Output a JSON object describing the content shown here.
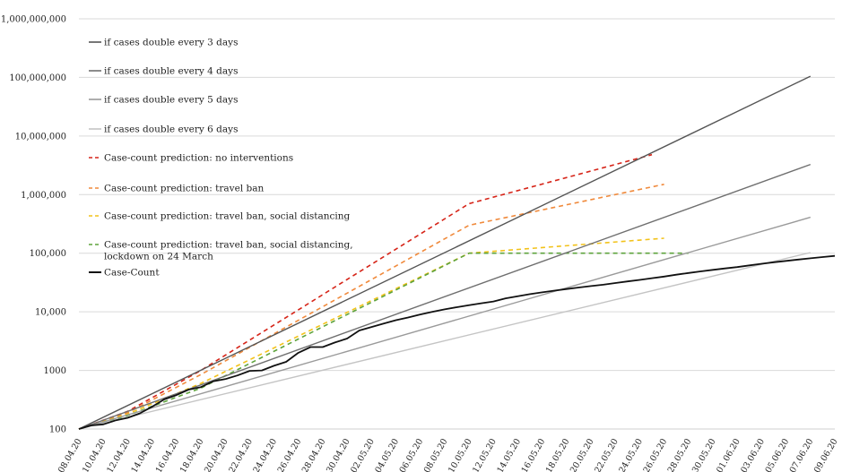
{
  "chart_data": {
    "type": "line",
    "y_scale": "log",
    "ylim": [
      100,
      1000000000
    ],
    "y_ticks": [
      {
        "value": 100,
        "label": "100"
      },
      {
        "value": 1000,
        "label": "1000"
      },
      {
        "value": 10000,
        "label": "10,000"
      },
      {
        "value": 100000,
        "label": "100,000"
      },
      {
        "value": 1000000,
        "label": "1,000,000"
      },
      {
        "value": 10000000,
        "label": "10,000,000"
      },
      {
        "value": 100000000,
        "label": "100,000,000"
      },
      {
        "value": 1000000000,
        "label": "1,000,000,000"
      }
    ],
    "x_ticks": [
      "08.04.20",
      "10.04.20",
      "12.04.20",
      "14.04.20",
      "16.04.20",
      "18.04.20",
      "20.04.20",
      "22.04.20",
      "24.04.20",
      "26.04.20",
      "28.04.20",
      "30.04.20",
      "02.05.20",
      "04.05.20",
      "06.05.20",
      "08.05.20",
      "10.05.20",
      "12.05.20",
      "14.05.20",
      "16.05.20",
      "18.05.20",
      "20.05.20",
      "22.05.20",
      "24.05.20",
      "26.05.20",
      "28.05.20",
      "30.05.20",
      "01.06.20",
      "03.06.20",
      "05.06.20",
      "07.06.20",
      "09.06.20"
    ],
    "grid": true,
    "legend_position": "top-left",
    "series": [
      {
        "name": "if cases double every 3 days",
        "color": "#555555",
        "style": "solid",
        "points": [
          [
            "08.04.20",
            100
          ],
          [
            "07.06.20",
            104857600
          ]
        ]
      },
      {
        "name": "if cases double every 4 days",
        "color": "#6f6f6f",
        "style": "solid",
        "points": [
          [
            "08.04.20",
            100
          ],
          [
            "07.06.20",
            3276800
          ]
        ]
      },
      {
        "name": "if cases double every 5 days",
        "color": "#9a9a9a",
        "style": "solid",
        "points": [
          [
            "08.04.20",
            100
          ],
          [
            "07.06.20",
            409600
          ]
        ]
      },
      {
        "name": "if cases double every 6 days",
        "color": "#c4c4c4",
        "style": "solid",
        "points": [
          [
            "08.04.20",
            100
          ],
          [
            "07.06.20",
            102400
          ]
        ]
      },
      {
        "name": "Case-count prediction: no interventions",
        "color": "#d62418",
        "style": "dashed",
        "points": [
          [
            "08.04.20",
            100
          ],
          [
            "12.04.20",
            200
          ],
          [
            "18.04.20",
            1000
          ],
          [
            "10.05.20",
            700000
          ],
          [
            "25.05.20",
            4800000
          ]
        ]
      },
      {
        "name": "Case-count prediction: travel ban",
        "color": "#f08a3c",
        "style": "dashed",
        "points": [
          [
            "08.04.20",
            100
          ],
          [
            "12.04.20",
            190
          ],
          [
            "18.04.20",
            850
          ],
          [
            "10.05.20",
            300000
          ],
          [
            "26.05.20",
            1500000
          ]
        ]
      },
      {
        "name": "Case-count prediction: travel ban, social distancing",
        "color": "#f2c21a",
        "style": "dashed",
        "points": [
          [
            "08.04.20",
            100
          ],
          [
            "12.04.20",
            180
          ],
          [
            "18.04.20",
            600
          ],
          [
            "10.05.20",
            100000
          ],
          [
            "26.05.20",
            180000
          ]
        ]
      },
      {
        "name": "Case-count prediction: travel ban, social distancing, lockdown on 24 March",
        "color": "#5ea33c",
        "style": "dashed",
        "points": [
          [
            "08.04.20",
            100
          ],
          [
            "12.04.20",
            170
          ],
          [
            "18.04.20",
            500
          ],
          [
            "10.05.20",
            100000
          ],
          [
            "28.05.20",
            100000
          ]
        ]
      },
      {
        "name": "Case-Count",
        "color": "#111111",
        "style": "solid",
        "points": [
          [
            "08.04.20",
            100
          ],
          [
            "09.04.20",
            115
          ],
          [
            "10.04.20",
            120
          ],
          [
            "11.04.20",
            140
          ],
          [
            "12.04.20",
            155
          ],
          [
            "13.04.20",
            185
          ],
          [
            "14.04.20",
            240
          ],
          [
            "15.04.20",
            320
          ],
          [
            "16.04.20",
            380
          ],
          [
            "17.04.20",
            470
          ],
          [
            "18.04.20",
            520
          ],
          [
            "19.04.20",
            650
          ],
          [
            "20.04.20",
            710
          ],
          [
            "21.04.20",
            820
          ],
          [
            "22.04.20",
            980
          ],
          [
            "23.04.20",
            1000
          ],
          [
            "24.04.20",
            1200
          ],
          [
            "25.04.20",
            1400
          ],
          [
            "26.04.20",
            2000
          ],
          [
            "27.04.20",
            2500
          ],
          [
            "28.04.20",
            2500
          ],
          [
            "29.04.20",
            3000
          ],
          [
            "30.04.20",
            3500
          ],
          [
            "01.05.20",
            4800
          ],
          [
            "02.05.20",
            5500
          ],
          [
            "03.05.20",
            6300
          ],
          [
            "04.05.20",
            7200
          ],
          [
            "05.05.20",
            8000
          ],
          [
            "06.05.20",
            9000
          ],
          [
            "07.05.20",
            10000
          ],
          [
            "08.05.20",
            11000
          ],
          [
            "09.05.20",
            12000
          ],
          [
            "10.05.20",
            13000
          ],
          [
            "11.05.20",
            14000
          ],
          [
            "12.05.20",
            15000
          ],
          [
            "13.05.20",
            17000
          ],
          [
            "14.05.20",
            18500
          ],
          [
            "15.05.20",
            20000
          ],
          [
            "16.05.20",
            21500
          ],
          [
            "17.05.20",
            23000
          ],
          [
            "18.05.20",
            24500
          ],
          [
            "19.05.20",
            26000
          ],
          [
            "20.05.20",
            27500
          ],
          [
            "21.05.20",
            29000
          ],
          [
            "22.05.20",
            31000
          ],
          [
            "23.05.20",
            33000
          ],
          [
            "24.05.20",
            35000
          ],
          [
            "25.05.20",
            37500
          ],
          [
            "26.05.20",
            40000
          ],
          [
            "27.05.20",
            43000
          ],
          [
            "28.05.20",
            46000
          ],
          [
            "29.05.20",
            49000
          ],
          [
            "30.05.20",
            52000
          ],
          [
            "31.05.20",
            55000
          ],
          [
            "01.06.20",
            58000
          ],
          [
            "02.06.20",
            62000
          ],
          [
            "03.06.20",
            66000
          ],
          [
            "04.06.20",
            70000
          ],
          [
            "05.06.20",
            74000
          ],
          [
            "06.06.20",
            78000
          ],
          [
            "07.06.20",
            82000
          ],
          [
            "08.06.20",
            86000
          ],
          [
            "09.06.20",
            90000
          ]
        ]
      }
    ]
  }
}
